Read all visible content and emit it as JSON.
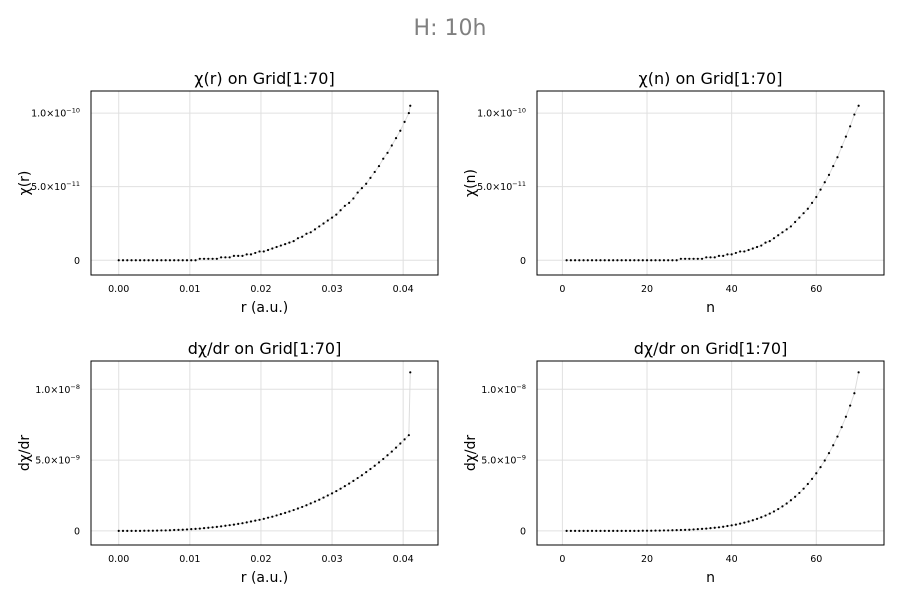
{
  "figure": {
    "title": "H: 10h"
  },
  "chart_data": [
    {
      "type": "scatter",
      "title": "χ(r) on Grid[1:70]",
      "xlabel": "r (a.u.)",
      "ylabel": "χ(r)",
      "xlim": [
        -0.0039,
        0.0449
      ],
      "ylim": [
        -1e-11,
        1.15e-10
      ],
      "xticks": [
        0,
        0.01,
        0.02,
        0.03,
        0.04
      ],
      "xtick_labels": [
        "0.00",
        "0.01",
        "0.02",
        "0.03",
        "0.04"
      ],
      "yticks": [
        0,
        5e-11,
        1e-10
      ],
      "ytick_labels": [
        {
          "base": "0",
          "exp": ""
        },
        {
          "base": "5.0×10",
          "exp": "−11"
        },
        {
          "base": "1.0×10",
          "exp": "−10"
        }
      ],
      "grid": true,
      "series": [
        {
          "x": [
            0.0,
            0.0006,
            0.0012,
            0.0018,
            0.0024,
            0.003,
            0.0036,
            0.0042,
            0.0048,
            0.0054,
            0.006,
            0.0066,
            0.0072,
            0.0078,
            0.0084,
            0.009,
            0.0096,
            0.0102,
            0.0108,
            0.0114,
            0.012,
            0.0126,
            0.0132,
            0.0138,
            0.0144,
            0.015,
            0.0156,
            0.0162,
            0.0168,
            0.0174,
            0.018,
            0.0186,
            0.0192,
            0.0198,
            0.0204,
            0.021,
            0.0216,
            0.0222,
            0.0228,
            0.0234,
            0.024,
            0.0246,
            0.0252,
            0.0258,
            0.0264,
            0.027,
            0.0276,
            0.0282,
            0.0288,
            0.0294,
            0.03,
            0.0306,
            0.0312,
            0.0318,
            0.0324,
            0.033,
            0.0336,
            0.0342,
            0.0348,
            0.0354,
            0.036,
            0.0366,
            0.0372,
            0.0378,
            0.0384,
            0.039,
            0.0396,
            0.0402,
            0.0408,
            0.041
          ],
          "y": [
            0.0,
            0.0,
            0.0,
            0.0,
            0.0,
            0.0,
            0.0,
            0.0,
            0.0,
            0.0,
            0.0,
            0.0,
            0.0,
            0.0,
            0.0,
            0.0,
            0.0,
            0.0,
            0.0,
            1e-12,
            1e-12,
            1e-12,
            1e-12,
            1e-12,
            2e-12,
            2e-12,
            2e-12,
            3e-12,
            3e-12,
            3e-12,
            4e-12,
            4e-12,
            5e-12,
            6e-12,
            6e-12,
            7e-12,
            8e-12,
            9e-12,
            1e-11,
            1.1e-11,
            1.2e-11,
            1.3e-11,
            1.5e-11,
            1.6e-11,
            1.8e-11,
            1.9e-11,
            2.1e-11,
            2.3e-11,
            2.5e-11,
            2.7e-11,
            2.9e-11,
            3.1e-11,
            3.4e-11,
            3.7e-11,
            3.9e-11,
            4.2e-11,
            4.6e-11,
            4.9e-11,
            5.2e-11,
            5.6e-11,
            6e-11,
            6.4e-11,
            6.9e-11,
            7.3e-11,
            7.8e-11,
            8.3e-11,
            8.8e-11,
            9.4e-11,
            1e-10,
            1.05e-10
          ]
        }
      ]
    },
    {
      "type": "scatter",
      "title": "χ(n) on Grid[1:70]",
      "xlabel": "n",
      "ylabel": "χ(n)",
      "xlim": [
        -6,
        76
      ],
      "ylim": [
        -1e-11,
        1.15e-10
      ],
      "xticks": [
        0,
        20,
        40,
        60
      ],
      "xtick_labels": [
        "0",
        "20",
        "40",
        "60"
      ],
      "yticks": [
        0,
        5e-11,
        1e-10
      ],
      "ytick_labels": [
        {
          "base": "0",
          "exp": ""
        },
        {
          "base": "5.0×10",
          "exp": "−11"
        },
        {
          "base": "1.0×10",
          "exp": "−10"
        }
      ],
      "grid": true,
      "series": [
        {
          "x": [
            1,
            2,
            3,
            4,
            5,
            6,
            7,
            8,
            9,
            10,
            11,
            12,
            13,
            14,
            15,
            16,
            17,
            18,
            19,
            20,
            21,
            22,
            23,
            24,
            25,
            26,
            27,
            28,
            29,
            30,
            31,
            32,
            33,
            34,
            35,
            36,
            37,
            38,
            39,
            40,
            41,
            42,
            43,
            44,
            45,
            46,
            47,
            48,
            49,
            50,
            51,
            52,
            53,
            54,
            55,
            56,
            57,
            58,
            59,
            60,
            61,
            62,
            63,
            64,
            65,
            66,
            67,
            68,
            69,
            70
          ],
          "y": [
            0.0,
            0.0,
            0.0,
            0.0,
            0.0,
            0.0,
            0.0,
            0.0,
            0.0,
            0.0,
            0.0,
            0.0,
            0.0,
            0.0,
            0.0,
            0.0,
            0.0,
            0.0,
            0.0,
            0.0,
            0.0,
            0.0,
            0.0,
            0.0,
            0.0,
            0.0,
            0.0,
            1e-12,
            1e-12,
            1e-12,
            1e-12,
            1e-12,
            1e-12,
            2e-12,
            2e-12,
            2e-12,
            3e-12,
            3e-12,
            4e-12,
            4e-12,
            5e-12,
            6e-12,
            6e-12,
            7e-12,
            8e-12,
            9e-12,
            1e-11,
            1.2e-11,
            1.3e-11,
            1.5e-11,
            1.7e-11,
            1.9e-11,
            2.1e-11,
            2.3e-11,
            2.6e-11,
            2.9e-11,
            3.2e-11,
            3.5e-11,
            3.9e-11,
            4.3e-11,
            4.8e-11,
            5.3e-11,
            5.8e-11,
            6.4e-11,
            7e-11,
            7.7e-11,
            8.4e-11,
            9.1e-11,
            9.9e-11,
            1.05e-10
          ]
        }
      ]
    },
    {
      "type": "scatter",
      "title": "dχ/dr on Grid[1:70]",
      "xlabel": "r (a.u.)",
      "ylabel": "dχ/dr",
      "xlim": [
        -0.0039,
        0.0449
      ],
      "ylim": [
        -1e-09,
        1.2e-08
      ],
      "xticks": [
        0,
        0.01,
        0.02,
        0.03,
        0.04
      ],
      "xtick_labels": [
        "0.00",
        "0.01",
        "0.02",
        "0.03",
        "0.04"
      ],
      "yticks": [
        0,
        5e-09,
        1e-08
      ],
      "ytick_labels": [
        {
          "base": "0",
          "exp": ""
        },
        {
          "base": "5.0×10",
          "exp": "−9"
        },
        {
          "base": "1.0×10",
          "exp": "−8"
        }
      ],
      "grid": true,
      "series": [
        {
          "x": [
            0.0,
            0.0006,
            0.0012,
            0.0018,
            0.0024,
            0.003,
            0.0036,
            0.0042,
            0.0048,
            0.0054,
            0.006,
            0.0066,
            0.0072,
            0.0078,
            0.0084,
            0.009,
            0.0096,
            0.0102,
            0.0108,
            0.0114,
            0.012,
            0.0126,
            0.0132,
            0.0138,
            0.0144,
            0.015,
            0.0156,
            0.0162,
            0.0168,
            0.0174,
            0.018,
            0.0186,
            0.0192,
            0.0198,
            0.0204,
            0.021,
            0.0216,
            0.0222,
            0.0228,
            0.0234,
            0.024,
            0.0246,
            0.0252,
            0.0258,
            0.0264,
            0.027,
            0.0276,
            0.0282,
            0.0288,
            0.0294,
            0.03,
            0.0306,
            0.0312,
            0.0318,
            0.0324,
            0.033,
            0.0336,
            0.0342,
            0.0348,
            0.0354,
            0.036,
            0.0366,
            0.0372,
            0.0378,
            0.0384,
            0.039,
            0.0396,
            0.0402,
            0.0408,
            0.041
          ],
          "y": [
            0.0,
            0.0,
            0.0,
            0.0,
            0.0,
            0.0,
            1e-11,
            1e-11,
            1e-11,
            2e-11,
            3e-11,
            3e-11,
            4e-11,
            6e-11,
            7e-11,
            8e-11,
            1e-10,
            1.2e-10,
            1.4e-10,
            1.6e-10,
            1.9e-10,
            2.2e-10,
            2.5e-10,
            2.8e-10,
            3.2e-10,
            3.6e-10,
            4e-10,
            4.4e-10,
            4.9e-10,
            5.4e-10,
            6e-10,
            6.6e-10,
            7.2e-10,
            7.8e-10,
            8.5e-10,
            9.3e-10,
            1e-09,
            1.09e-09,
            1.18e-09,
            1.27e-09,
            1.37e-09,
            1.47e-09,
            1.58e-09,
            1.69e-09,
            1.81e-09,
            1.94e-09,
            2.07e-09,
            2.2e-09,
            2.35e-09,
            2.5e-09,
            2.65e-09,
            2.81e-09,
            2.98e-09,
            3.16e-09,
            3.34e-09,
            3.53e-09,
            3.73e-09,
            3.93e-09,
            4.15e-09,
            4.37e-09,
            4.6e-09,
            4.84e-09,
            5.08e-09,
            5.34e-09,
            5.6e-09,
            5.88e-09,
            6.17e-09,
            6.46e-09,
            6.76e-09,
            1.12e-08
          ]
        }
      ]
    },
    {
      "type": "scatter",
      "title": "dχ/dr on Grid[1:70]",
      "xlabel": "n",
      "ylabel": "dχ/dr",
      "xlim": [
        -6,
        76
      ],
      "ylim": [
        -1e-09,
        1.2e-08
      ],
      "xticks": [
        0,
        20,
        40,
        60
      ],
      "xtick_labels": [
        "0",
        "20",
        "40",
        "60"
      ],
      "yticks": [
        0,
        5e-09,
        1e-08
      ],
      "ytick_labels": [
        {
          "base": "0",
          "exp": ""
        },
        {
          "base": "5.0×10",
          "exp": "−9"
        },
        {
          "base": "1.0×10",
          "exp": "−8"
        }
      ],
      "grid": true,
      "series": [
        {
          "x": [
            1,
            2,
            3,
            4,
            5,
            6,
            7,
            8,
            9,
            10,
            11,
            12,
            13,
            14,
            15,
            16,
            17,
            18,
            19,
            20,
            21,
            22,
            23,
            24,
            25,
            26,
            27,
            28,
            29,
            30,
            31,
            32,
            33,
            34,
            35,
            36,
            37,
            38,
            39,
            40,
            41,
            42,
            43,
            44,
            45,
            46,
            47,
            48,
            49,
            50,
            51,
            52,
            53,
            54,
            55,
            56,
            57,
            58,
            59,
            60,
            61,
            62,
            63,
            64,
            65,
            66,
            67,
            68,
            69,
            70
          ],
          "y": [
            0.0,
            0.0,
            0.0,
            0.0,
            0.0,
            0.0,
            0.0,
            0.0,
            0.0,
            0.0,
            0.0,
            0.0,
            0.0,
            0.0,
            0.0,
            0.0,
            0.0,
            0.0,
            1e-11,
            1e-11,
            1e-11,
            2e-11,
            2e-11,
            3e-11,
            3e-11,
            4e-11,
            5e-11,
            6e-11,
            7e-11,
            8e-11,
            1e-10,
            1.2e-10,
            1.4e-10,
            1.6e-10,
            1.9e-10,
            2.2e-10,
            2.5e-10,
            2.9e-10,
            3.4e-10,
            3.9e-10,
            4.4e-10,
            5.1e-10,
            5.8e-10,
            6.6e-10,
            7.5e-10,
            8.5e-10,
            9.6e-10,
            1.08e-09,
            1.22e-09,
            1.37e-09,
            1.54e-09,
            1.73e-09,
            1.93e-09,
            2.16e-09,
            2.41e-09,
            2.68e-09,
            2.98e-09,
            3.31e-09,
            3.67e-09,
            4.07e-09,
            4.5e-09,
            4.97e-09,
            5.49e-09,
            6.05e-09,
            6.66e-09,
            7.33e-09,
            8.06e-09,
            8.85e-09,
            9.72e-09,
            1.12e-08
          ]
        }
      ]
    }
  ]
}
